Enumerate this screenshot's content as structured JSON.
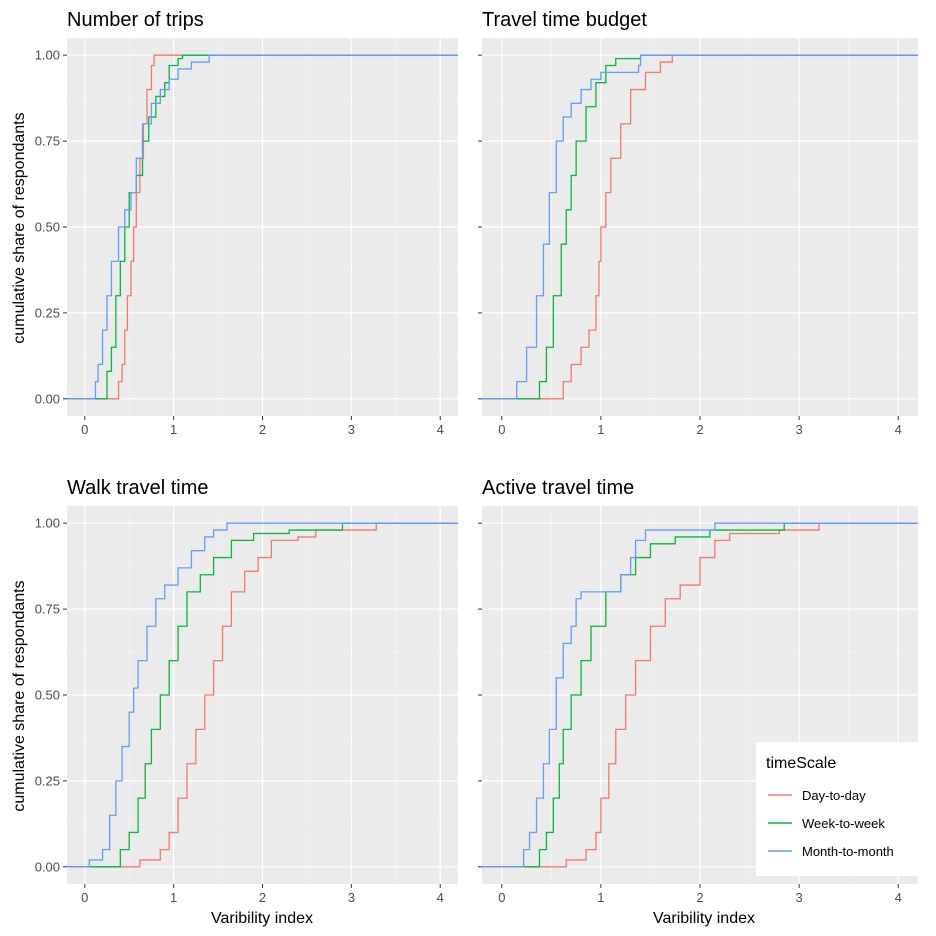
{
  "chart_data": [
    {
      "type": "line",
      "step": true,
      "title": "Number of trips",
      "xlabel": "",
      "ylabel": "cumulative share of respondants",
      "xlim": [
        -0.2,
        4.2
      ],
      "ylim": [
        -0.05,
        1.05
      ],
      "x_ticks": [
        "0",
        "1",
        "2",
        "3",
        "4"
      ],
      "y_ticks": [
        "0.00",
        "0.25",
        "0.50",
        "0.75",
        "1.00"
      ],
      "grid": true,
      "series": [
        {
          "name": "Day-to-day",
          "color": "#F8766D",
          "points": [
            [
              -0.2,
              0
            ],
            [
              0.35,
              0
            ],
            [
              0.38,
              0.05
            ],
            [
              0.42,
              0.1
            ],
            [
              0.45,
              0.2
            ],
            [
              0.48,
              0.3
            ],
            [
              0.52,
              0.4
            ],
            [
              0.55,
              0.5
            ],
            [
              0.58,
              0.6
            ],
            [
              0.62,
              0.7
            ],
            [
              0.66,
              0.8
            ],
            [
              0.7,
              0.9
            ],
            [
              0.75,
              0.97
            ],
            [
              0.78,
              1.0
            ],
            [
              4.2,
              1.0
            ]
          ]
        },
        {
          "name": "Week-to-week",
          "color": "#00BA38",
          "points": [
            [
              -0.2,
              0
            ],
            [
              0.22,
              0
            ],
            [
              0.25,
              0.08
            ],
            [
              0.3,
              0.15
            ],
            [
              0.35,
              0.3
            ],
            [
              0.4,
              0.4
            ],
            [
              0.45,
              0.5
            ],
            [
              0.5,
              0.6
            ],
            [
              0.58,
              0.65
            ],
            [
              0.65,
              0.75
            ],
            [
              0.72,
              0.82
            ],
            [
              0.8,
              0.88
            ],
            [
              0.9,
              0.92
            ],
            [
              0.95,
              0.97
            ],
            [
              1.05,
              0.99
            ],
            [
              1.1,
              1.0
            ],
            [
              4.2,
              1.0
            ]
          ]
        },
        {
          "name": "Month-to-month",
          "color": "#619CFF",
          "points": [
            [
              -0.2,
              0
            ],
            [
              0.08,
              0
            ],
            [
              0.12,
              0.05
            ],
            [
              0.15,
              0.1
            ],
            [
              0.2,
              0.2
            ],
            [
              0.25,
              0.3
            ],
            [
              0.3,
              0.4
            ],
            [
              0.38,
              0.5
            ],
            [
              0.45,
              0.55
            ],
            [
              0.52,
              0.6
            ],
            [
              0.58,
              0.7
            ],
            [
              0.65,
              0.8
            ],
            [
              0.75,
              0.86
            ],
            [
              0.85,
              0.9
            ],
            [
              0.95,
              0.93
            ],
            [
              1.05,
              0.96
            ],
            [
              1.2,
              0.98
            ],
            [
              1.4,
              1.0
            ],
            [
              4.2,
              1.0
            ]
          ]
        }
      ]
    },
    {
      "type": "line",
      "step": true,
      "title": "Travel time budget",
      "xlabel": "",
      "ylabel": "",
      "xlim": [
        -0.2,
        4.2
      ],
      "ylim": [
        -0.05,
        1.05
      ],
      "x_ticks": [
        "0",
        "1",
        "2",
        "3",
        "4"
      ],
      "y_ticks": [
        "0.00",
        "0.25",
        "0.50",
        "0.75",
        "1.00"
      ],
      "grid": true,
      "series": [
        {
          "name": "Day-to-day",
          "color": "#F8766D",
          "points": [
            [
              -0.2,
              0
            ],
            [
              0.55,
              0
            ],
            [
              0.62,
              0.05
            ],
            [
              0.7,
              0.1
            ],
            [
              0.8,
              0.15
            ],
            [
              0.88,
              0.2
            ],
            [
              0.95,
              0.3
            ],
            [
              0.98,
              0.4
            ],
            [
              1.0,
              0.5
            ],
            [
              1.05,
              0.6
            ],
            [
              1.1,
              0.7
            ],
            [
              1.2,
              0.8
            ],
            [
              1.3,
              0.9
            ],
            [
              1.45,
              0.95
            ],
            [
              1.6,
              0.98
            ],
            [
              1.72,
              1.0
            ],
            [
              4.2,
              1.0
            ]
          ]
        },
        {
          "name": "Week-to-week",
          "color": "#00BA38",
          "points": [
            [
              -0.2,
              0
            ],
            [
              0.3,
              0
            ],
            [
              0.38,
              0.05
            ],
            [
              0.45,
              0.15
            ],
            [
              0.52,
              0.3
            ],
            [
              0.6,
              0.45
            ],
            [
              0.65,
              0.55
            ],
            [
              0.7,
              0.65
            ],
            [
              0.75,
              0.75
            ],
            [
              0.85,
              0.85
            ],
            [
              0.95,
              0.92
            ],
            [
              1.05,
              0.97
            ],
            [
              1.15,
              0.99
            ],
            [
              1.4,
              1.0
            ],
            [
              4.2,
              1.0
            ]
          ]
        },
        {
          "name": "Month-to-month",
          "color": "#619CFF",
          "points": [
            [
              -0.2,
              0
            ],
            [
              0.1,
              0
            ],
            [
              0.15,
              0.05
            ],
            [
              0.25,
              0.15
            ],
            [
              0.35,
              0.3
            ],
            [
              0.42,
              0.45
            ],
            [
              0.48,
              0.6
            ],
            [
              0.55,
              0.75
            ],
            [
              0.62,
              0.82
            ],
            [
              0.7,
              0.86
            ],
            [
              0.8,
              0.9
            ],
            [
              0.9,
              0.93
            ],
            [
              1.0,
              0.95
            ],
            [
              1.38,
              0.97
            ],
            [
              1.4,
              1.0
            ],
            [
              4.2,
              1.0
            ]
          ]
        }
      ]
    },
    {
      "type": "line",
      "step": true,
      "title": "Walk travel time",
      "xlabel": "Varibility index",
      "ylabel": "cumulative share of respondants",
      "xlim": [
        -0.2,
        4.2
      ],
      "ylim": [
        -0.05,
        1.05
      ],
      "x_ticks": [
        "0",
        "1",
        "2",
        "3",
        "4"
      ],
      "y_ticks": [
        "0.00",
        "0.25",
        "0.50",
        "0.75",
        "1.00"
      ],
      "grid": true,
      "series": [
        {
          "name": "Day-to-day",
          "color": "#F8766D",
          "points": [
            [
              -0.2,
              0
            ],
            [
              0.6,
              0
            ],
            [
              0.62,
              0.02
            ],
            [
              0.85,
              0.05
            ],
            [
              0.95,
              0.1
            ],
            [
              1.05,
              0.2
            ],
            [
              1.15,
              0.3
            ],
            [
              1.25,
              0.4
            ],
            [
              1.35,
              0.5
            ],
            [
              1.45,
              0.6
            ],
            [
              1.55,
              0.7
            ],
            [
              1.65,
              0.8
            ],
            [
              1.8,
              0.86
            ],
            [
              1.95,
              0.9
            ],
            [
              2.1,
              0.95
            ],
            [
              2.4,
              0.96
            ],
            [
              2.6,
              0.98
            ],
            [
              3.28,
              1.0
            ],
            [
              4.2,
              1.0
            ]
          ]
        },
        {
          "name": "Week-to-week",
          "color": "#00BA38",
          "points": [
            [
              -0.2,
              0
            ],
            [
              0.3,
              0
            ],
            [
              0.4,
              0.05
            ],
            [
              0.5,
              0.1
            ],
            [
              0.6,
              0.2
            ],
            [
              0.68,
              0.3
            ],
            [
              0.75,
              0.4
            ],
            [
              0.85,
              0.5
            ],
            [
              0.95,
              0.6
            ],
            [
              1.05,
              0.7
            ],
            [
              1.15,
              0.8
            ],
            [
              1.3,
              0.85
            ],
            [
              1.45,
              0.9
            ],
            [
              1.65,
              0.95
            ],
            [
              1.9,
              0.97
            ],
            [
              2.3,
              0.98
            ],
            [
              2.9,
              1.0
            ],
            [
              4.2,
              1.0
            ]
          ]
        },
        {
          "name": "Month-to-month",
          "color": "#619CFF",
          "points": [
            [
              -0.2,
              0
            ],
            [
              0.05,
              0
            ],
            [
              0.05,
              0.02
            ],
            [
              0.2,
              0.05
            ],
            [
              0.28,
              0.15
            ],
            [
              0.35,
              0.25
            ],
            [
              0.42,
              0.35
            ],
            [
              0.5,
              0.45
            ],
            [
              0.55,
              0.52
            ],
            [
              0.6,
              0.6
            ],
            [
              0.7,
              0.7
            ],
            [
              0.8,
              0.78
            ],
            [
              0.9,
              0.82
            ],
            [
              1.05,
              0.87
            ],
            [
              1.2,
              0.92
            ],
            [
              1.35,
              0.96
            ],
            [
              1.45,
              0.98
            ],
            [
              1.6,
              1.0
            ],
            [
              4.2,
              1.0
            ]
          ]
        }
      ]
    },
    {
      "type": "line",
      "step": true,
      "title": "Active travel time",
      "xlabel": "Varibility index",
      "ylabel": "",
      "xlim": [
        -0.2,
        4.2
      ],
      "ylim": [
        -0.05,
        1.05
      ],
      "x_ticks": [
        "0",
        "1",
        "2",
        "3",
        "4"
      ],
      "y_ticks": [
        "0.00",
        "0.25",
        "0.50",
        "0.75",
        "1.00"
      ],
      "grid": true,
      "series": [
        {
          "name": "Day-to-day",
          "color": "#F8766D",
          "points": [
            [
              -0.2,
              0
            ],
            [
              0.6,
              0
            ],
            [
              0.65,
              0.02
            ],
            [
              0.85,
              0.05
            ],
            [
              0.95,
              0.1
            ],
            [
              1.0,
              0.2
            ],
            [
              1.08,
              0.3
            ],
            [
              1.15,
              0.4
            ],
            [
              1.25,
              0.5
            ],
            [
              1.35,
              0.6
            ],
            [
              1.5,
              0.7
            ],
            [
              1.65,
              0.78
            ],
            [
              1.8,
              0.82
            ],
            [
              2.0,
              0.9
            ],
            [
              2.15,
              0.95
            ],
            [
              2.3,
              0.97
            ],
            [
              2.8,
              0.98
            ],
            [
              3.2,
              1.0
            ],
            [
              4.2,
              1.0
            ]
          ]
        },
        {
          "name": "Week-to-week",
          "color": "#00BA38",
          "points": [
            [
              -0.2,
              0
            ],
            [
              0.3,
              0
            ],
            [
              0.38,
              0.05
            ],
            [
              0.45,
              0.1
            ],
            [
              0.52,
              0.2
            ],
            [
              0.58,
              0.3
            ],
            [
              0.62,
              0.4
            ],
            [
              0.7,
              0.5
            ],
            [
              0.8,
              0.6
            ],
            [
              0.9,
              0.7
            ],
            [
              1.05,
              0.8
            ],
            [
              1.2,
              0.85
            ],
            [
              1.35,
              0.9
            ],
            [
              1.5,
              0.94
            ],
            [
              1.75,
              0.96
            ],
            [
              2.1,
              0.98
            ],
            [
              2.85,
              1.0
            ],
            [
              4.2,
              1.0
            ]
          ]
        },
        {
          "name": "Month-to-month",
          "color": "#619CFF",
          "points": [
            [
              -0.2,
              0
            ],
            [
              0.2,
              0
            ],
            [
              0.22,
              0.05
            ],
            [
              0.28,
              0.1
            ],
            [
              0.35,
              0.2
            ],
            [
              0.42,
              0.3
            ],
            [
              0.48,
              0.4
            ],
            [
              0.55,
              0.55
            ],
            [
              0.62,
              0.65
            ],
            [
              0.7,
              0.7
            ],
            [
              0.75,
              0.78
            ],
            [
              0.8,
              0.8
            ],
            [
              1.2,
              0.85
            ],
            [
              1.3,
              0.9
            ],
            [
              1.35,
              0.95
            ],
            [
              1.45,
              0.98
            ],
            [
              2.15,
              1.0
            ],
            [
              4.2,
              1.0
            ]
          ]
        }
      ]
    }
  ],
  "legend": {
    "title": "timeScale",
    "position": "bottom-right",
    "items": [
      {
        "label": "Day-to-day",
        "color": "#F8766D"
      },
      {
        "label": "Week-to-week",
        "color": "#00BA38"
      },
      {
        "label": "Month-to-month",
        "color": "#619CFF"
      }
    ]
  },
  "colors": {
    "panel_background": "#EBEBEB",
    "grid_major": "#FFFFFF",
    "grid_minor": "#F5F5F5",
    "tick_text": "#4D4D4D",
    "tick_mark": "#333333"
  }
}
